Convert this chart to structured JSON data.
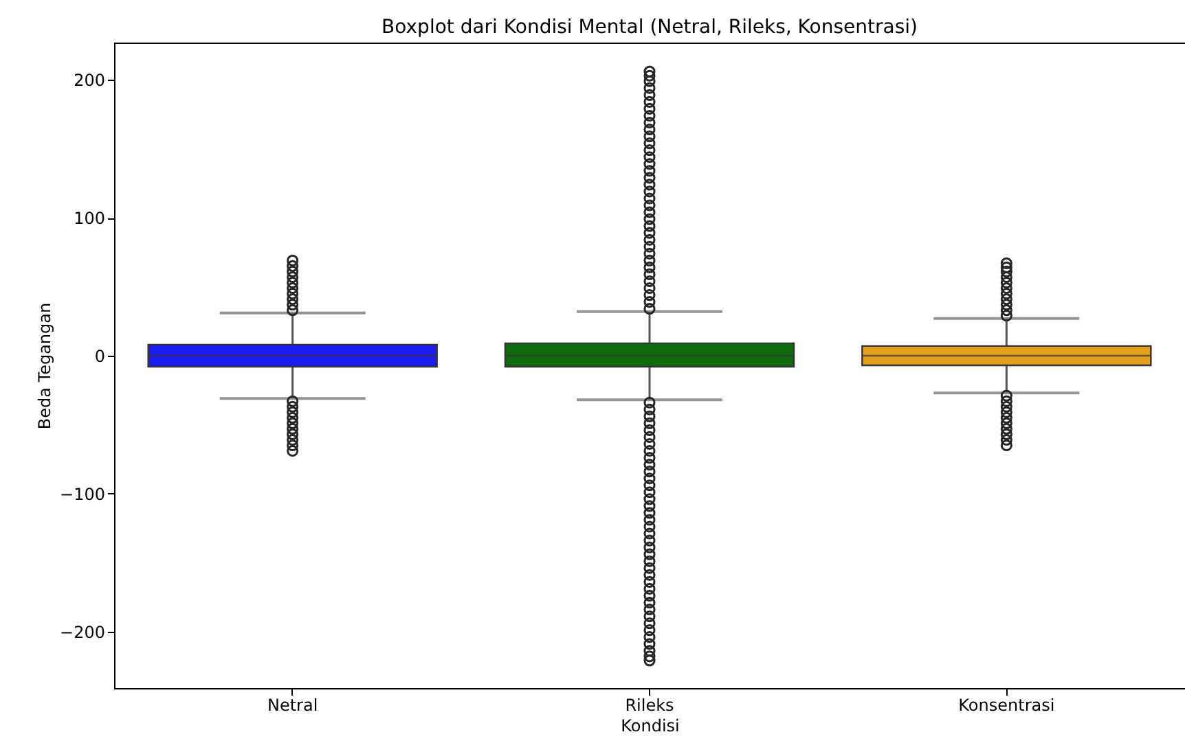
{
  "chart_data": {
    "type": "box",
    "title": "Boxplot dari Kondisi Mental (Netral, Rileks, Konsentrasi)",
    "xlabel": "Kondisi",
    "ylabel": "Beda Tegangan",
    "categories": [
      "Netral",
      "Rileks",
      "Konsentrasi"
    ],
    "colors": [
      "#1c1cf0",
      "#0e6b0e",
      "#e39f1e"
    ],
    "boxes": [
      {
        "low": -31,
        "q1": -8,
        "median": 0,
        "q3": 8,
        "high": 31,
        "outliers": [
          33,
          37,
          41,
          45,
          49,
          53,
          57,
          61,
          65,
          69,
          -33,
          -37,
          -41,
          -45,
          -49,
          -53,
          -57,
          -61,
          -65,
          -69
        ]
      },
      {
        "low": -32,
        "q1": -8,
        "median": 0,
        "q3": 9,
        "high": 32,
        "outliers": [
          34,
          39,
          44,
          49,
          54,
          59,
          64,
          69,
          74,
          79,
          84,
          89,
          94,
          99,
          104,
          109,
          114,
          119,
          124,
          129,
          134,
          139,
          144,
          149,
          154,
          159,
          164,
          169,
          174,
          179,
          184,
          189,
          194,
          199,
          203,
          206,
          -34,
          -39,
          -44,
          -49,
          -54,
          -59,
          -64,
          -69,
          -74,
          -79,
          -84,
          -89,
          -94,
          -99,
          -104,
          -109,
          -114,
          -119,
          -124,
          -129,
          -134,
          -139,
          -144,
          -149,
          -154,
          -159,
          -164,
          -169,
          -174,
          -179,
          -184,
          -189,
          -194,
          -199,
          -204,
          -209,
          -214,
          -218,
          -221
        ]
      },
      {
        "low": -27,
        "q1": -7,
        "median": 0,
        "q3": 7,
        "high": 27,
        "outliers": [
          29,
          33,
          37,
          41,
          45,
          49,
          53,
          57,
          61,
          64,
          67,
          -29,
          -33,
          -37,
          -41,
          -45,
          -49,
          -53,
          -57,
          -61,
          -65
        ]
      }
    ],
    "ylim": [
      -241,
      227
    ],
    "yticks": [
      -200,
      -100,
      0,
      100,
      200
    ],
    "grid": false
  }
}
